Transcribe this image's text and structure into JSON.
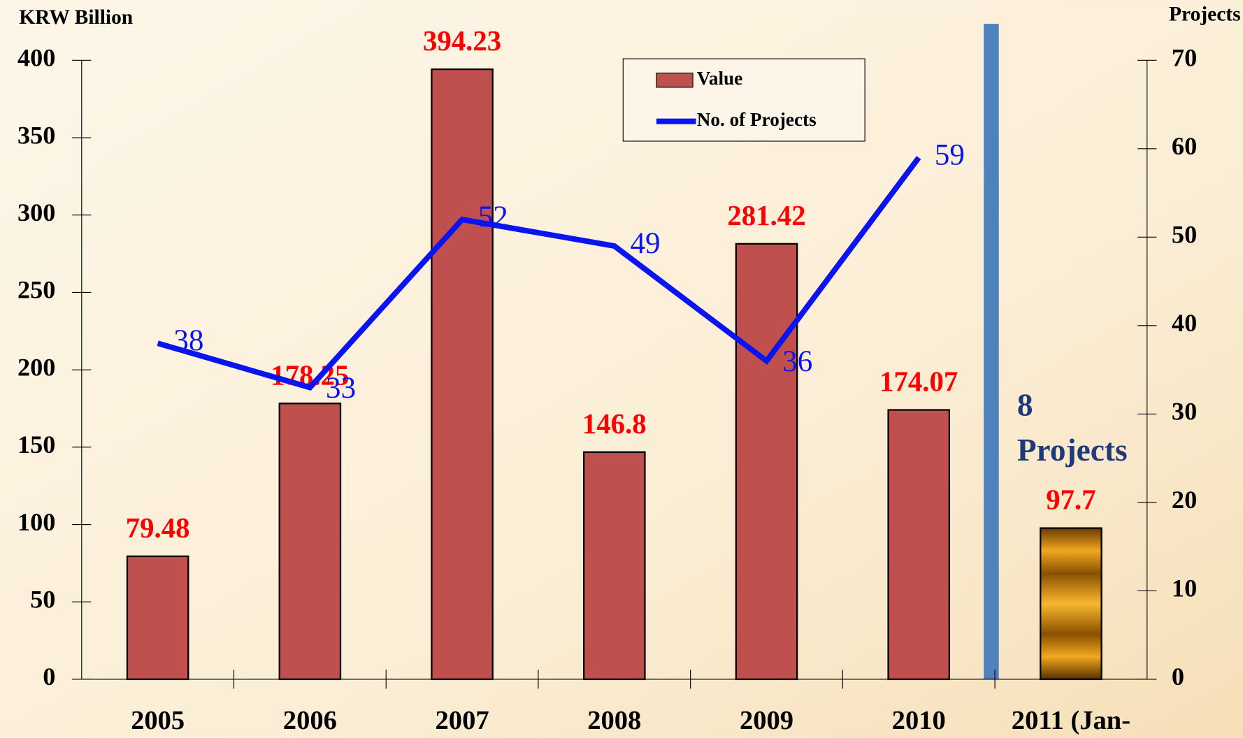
{
  "chart_data": {
    "type": "bar",
    "y_axis_label": "KRW Billion",
    "y2_axis_label": "Projects",
    "categories": [
      "2005",
      "2006",
      "2007",
      "2008",
      "2009",
      "2010",
      "2011 (Jan-"
    ],
    "series": [
      {
        "name": "Value",
        "type": "bar",
        "color": "#c0504d",
        "colors": [
          "#c0504d",
          "#c0504d",
          "#c0504d",
          "#c0504d",
          "#c0504d",
          "#c0504d",
          "#e8a020"
        ],
        "values": [
          79.48,
          178.25,
          394.23,
          146.8,
          281.42,
          174.07,
          97.7
        ]
      },
      {
        "name": "No. of Projects",
        "type": "line",
        "axis": "y2",
        "color": "#0a14f0",
        "values": [
          38,
          33,
          52,
          49,
          36,
          59,
          null
        ]
      }
    ],
    "annotation": [
      "8",
      "Projects"
    ],
    "ylim": [
      0,
      400
    ],
    "yticks": [
      0,
      50,
      100,
      150,
      200,
      250,
      300,
      350,
      400
    ],
    "y2lim": [
      0,
      70
    ],
    "y2ticks": [
      0,
      10,
      20,
      30,
      40,
      50,
      60,
      70
    ],
    "legend": "top-right"
  }
}
